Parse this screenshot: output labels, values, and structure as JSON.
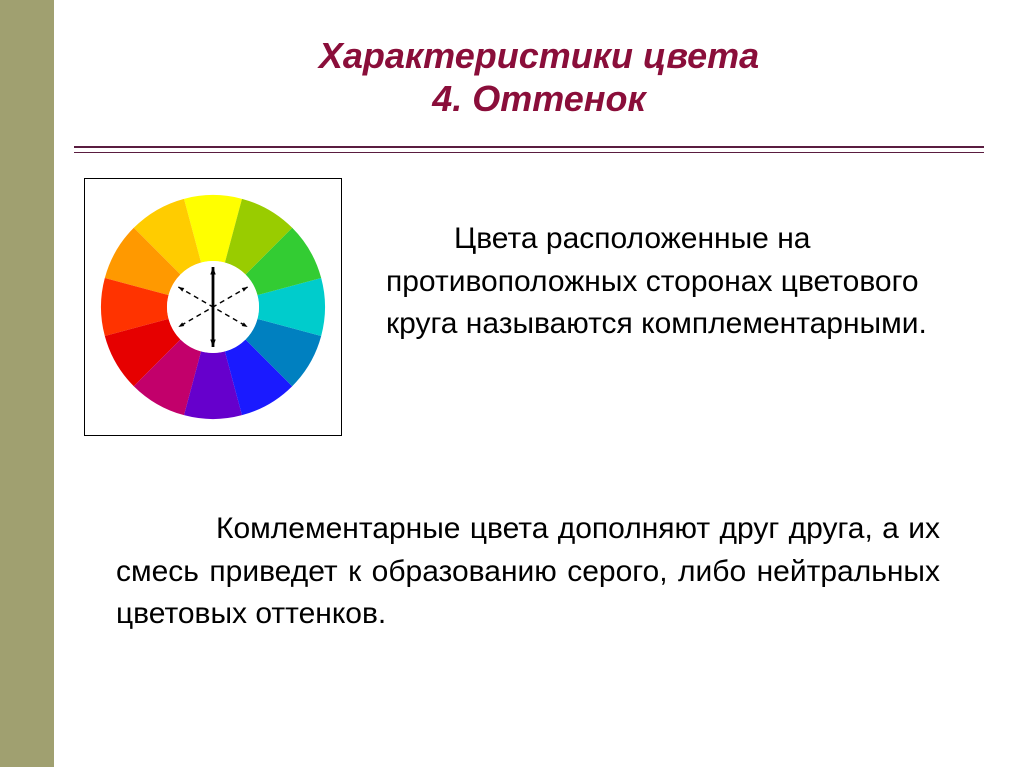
{
  "title": {
    "line1": "Характеристики цвета",
    "line2": "4. Оттенок",
    "color": "#8a0e3a",
    "fontsize": 36
  },
  "left_band_color": "#a0a070",
  "rule_color": "#5a1d40",
  "paragraph_right": "Цвета расположенные на противоположных сторонах цветового круга называются комплементарными.",
  "paragraph_bottom": "Комлементарные цвета дополняют друг друга, а их смесь приведет к образованию серого, либо нейтральных цветовых оттенков.",
  "color_wheel": {
    "type": "donut",
    "inner_radius": 46,
    "outer_radius": 112,
    "segments": [
      {
        "angle_deg": 90,
        "color": "#ffff00"
      },
      {
        "angle_deg": 120,
        "color": "#ffcc00"
      },
      {
        "angle_deg": 150,
        "color": "#ff9900"
      },
      {
        "angle_deg": 180,
        "color": "#ff3300"
      },
      {
        "angle_deg": 210,
        "color": "#e60000"
      },
      {
        "angle_deg": 240,
        "color": "#c2006b"
      },
      {
        "angle_deg": 270,
        "color": "#6600cc"
      },
      {
        "angle_deg": 300,
        "color": "#1a1aff"
      },
      {
        "angle_deg": 330,
        "color": "#0080c0"
      },
      {
        "angle_deg": 0,
        "color": "#00cccc"
      },
      {
        "angle_deg": 30,
        "color": "#33cc33"
      },
      {
        "angle_deg": 60,
        "color": "#99cc00"
      }
    ],
    "arrows": [
      {
        "a_deg": 90,
        "b_deg": 270,
        "bold": true
      },
      {
        "a_deg": 30,
        "b_deg": 210,
        "bold": false
      },
      {
        "a_deg": 150,
        "b_deg": 330,
        "bold": false
      }
    ],
    "arrow_color": "#000000",
    "background": "#ffffff"
  }
}
